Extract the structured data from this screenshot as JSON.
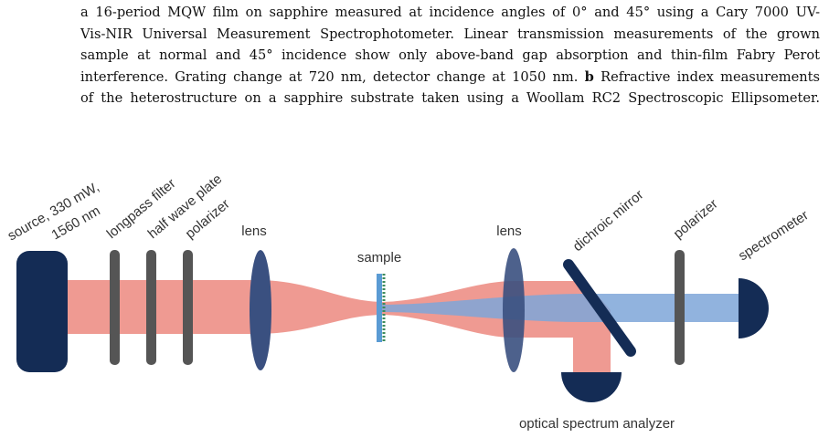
{
  "caption": {
    "lines": [
      "a 16-period MQW film on sapphire measured at incidence angles of 0° and 45° using a Cary 7000 UV-",
      "Vis-NIR Universal Measurement Spectrophotometer. Linear transmission measurements of the grown",
      "sample at normal and 45° incidence show only above-band gap absorption and thin-film Fabry Perot",
      "interference. Grating change at 720 nm, detector change at 1050 nm.",
      "of the heterostructure on a sapphire substrate taken using a Woollam RC2 Spectroscopic Ellipsometer."
    ],
    "panel_label": "b",
    "line_4_end": "Refractive index measurements"
  },
  "diagram": {
    "labels": {
      "source_1": "source, 330 mW,",
      "source_2": "1560 nm",
      "longpass_filter": "longpass filter",
      "half_wave_plate": "half wave plate",
      "polarizer_1": "polarizer",
      "lens_1": "lens",
      "sample": "sample",
      "lens_2": "lens",
      "dichroic_mirror": "dichroic mirror",
      "polarizer_2": "polarizer",
      "spectrometer": "spectrometer",
      "osa": "optical spectrum analyzer"
    }
  }
}
